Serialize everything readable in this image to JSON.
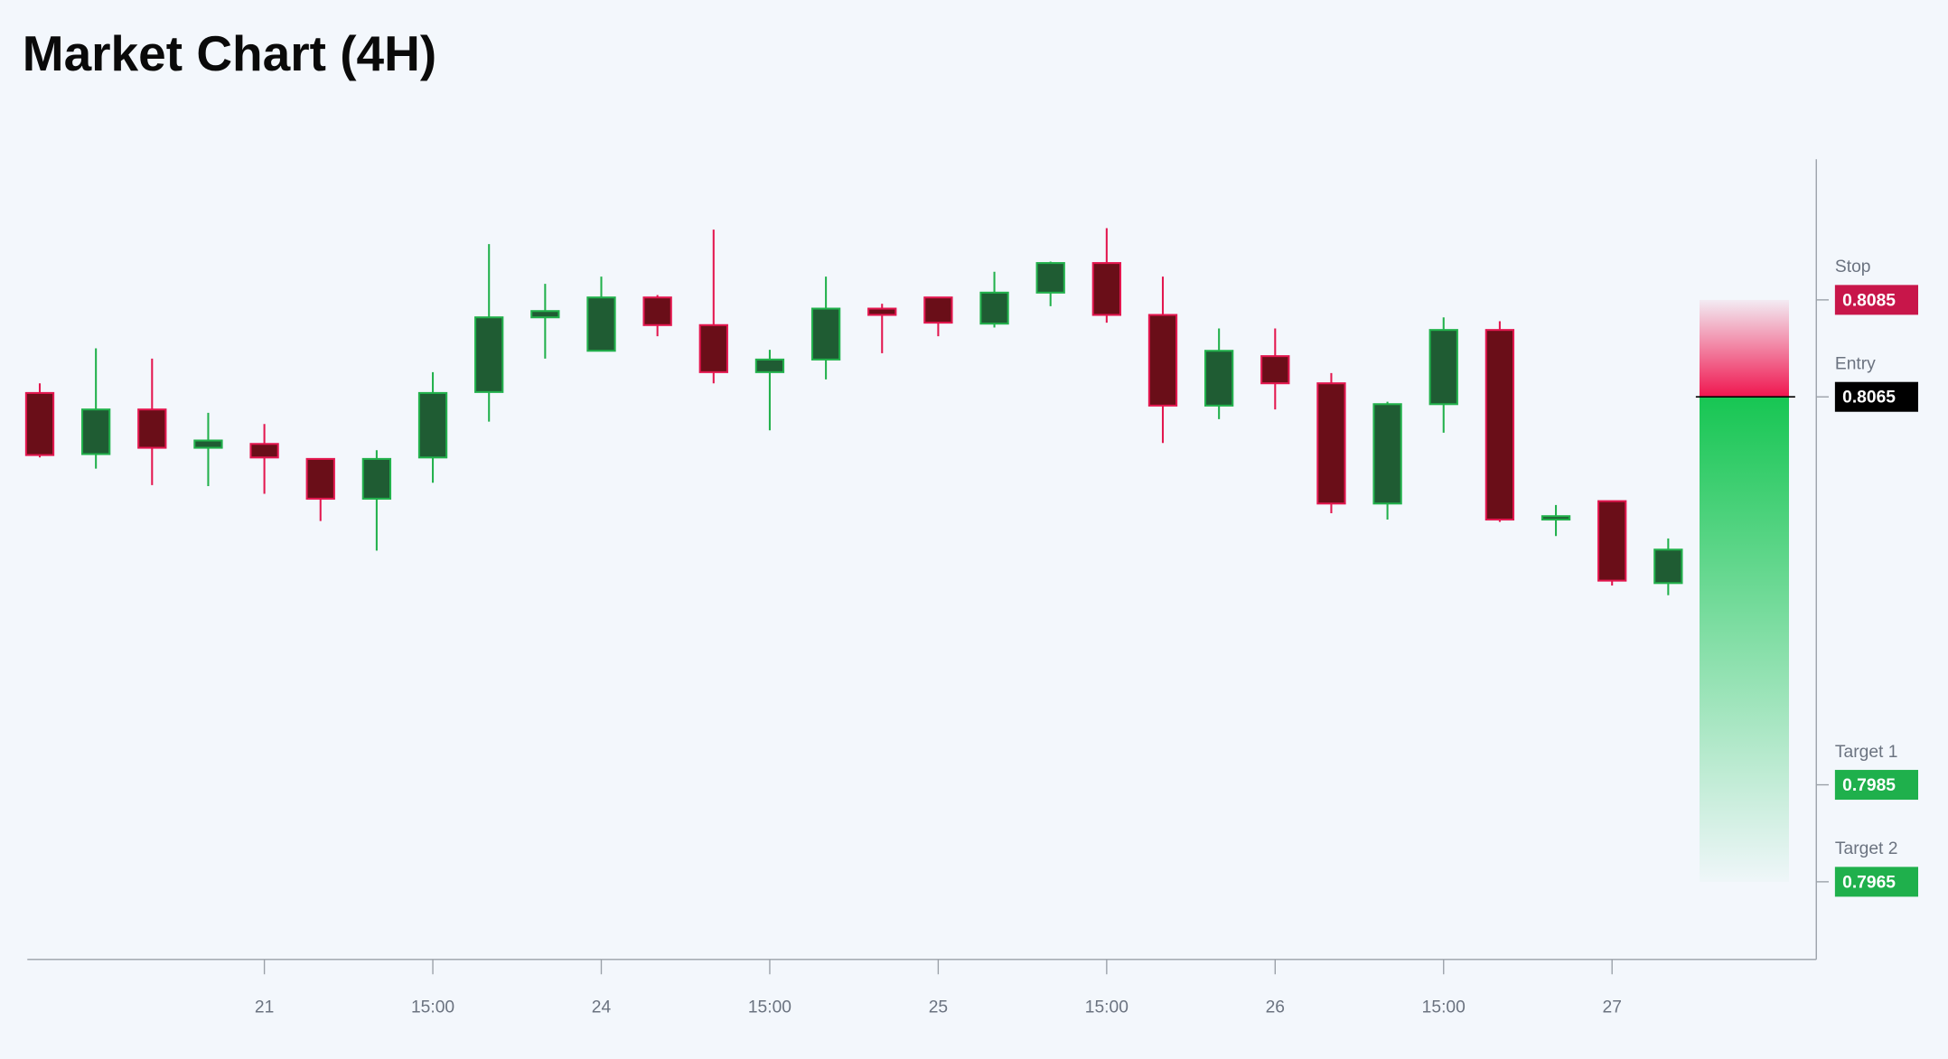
{
  "chart_data": {
    "type": "candlestick",
    "title": "Market Chart (4H)",
    "categories": [
      null,
      null,
      null,
      null,
      "21",
      null,
      null,
      "15:00",
      null,
      null,
      "24",
      null,
      null,
      "15:00",
      null,
      null,
      "25",
      null,
      null,
      "15:00",
      null,
      null,
      "26",
      null,
      null,
      "15:00",
      null,
      null,
      "27",
      null
    ],
    "open": [
      0.80658,
      0.80532,
      0.80624,
      0.80545,
      0.80553,
      0.80522,
      0.8044,
      0.80525,
      0.8066,
      0.80814,
      0.80745,
      0.80855,
      0.80798,
      0.80701,
      0.80727,
      0.80832,
      0.80855,
      0.80801,
      0.80865,
      0.80926,
      0.80819,
      0.80632,
      0.80734,
      0.80678,
      0.8043,
      0.80635,
      0.80788,
      0.80397,
      0.80435,
      0.80266
    ],
    "high": [
      0.80678,
      0.8075,
      0.80729,
      0.80617,
      0.80594,
      0.80522,
      0.8054,
      0.80701,
      0.80965,
      0.80883,
      0.80898,
      0.8086,
      0.80995,
      0.80747,
      0.80898,
      0.80842,
      0.80855,
      0.80908,
      0.80929,
      0.80998,
      0.80898,
      0.80791,
      0.80791,
      0.80699,
      0.8064,
      0.80814,
      0.80806,
      0.80427,
      0.80435,
      0.80358
    ],
    "low": [
      0.80525,
      0.80502,
      0.80468,
      0.80466,
      0.8045,
      0.80394,
      0.80333,
      0.80473,
      0.80599,
      0.80729,
      0.80745,
      0.80775,
      0.80678,
      0.80581,
      0.80686,
      0.8074,
      0.80775,
      0.80793,
      0.80837,
      0.80803,
      0.80555,
      0.80604,
      0.80624,
      0.8041,
      0.80397,
      0.80576,
      0.80392,
      0.80363,
      0.80261,
      0.80241
    ],
    "close": [
      0.8053,
      0.80624,
      0.80545,
      0.8056,
      0.80525,
      0.8044,
      0.80522,
      0.80658,
      0.80814,
      0.80827,
      0.80855,
      0.80798,
      0.80701,
      0.80727,
      0.80832,
      0.80819,
      0.80803,
      0.80865,
      0.80926,
      0.80819,
      0.80632,
      0.80745,
      0.80678,
      0.8043,
      0.80635,
      0.80788,
      0.80397,
      0.80404,
      0.80271,
      0.80335
    ],
    "up_color": "#22b14c",
    "up_fill": "#1f5c33",
    "down_color": "#e3174f",
    "down_fill": "#6a0e18",
    "ylim": [
      0.7949,
      0.8114
    ],
    "levels": [
      {
        "name": "Stop",
        "value": 0.8085,
        "color": "#c8164a"
      },
      {
        "name": "Entry",
        "value": 0.8065,
        "color": "#000000"
      },
      {
        "name": "Target 1",
        "value": 0.7985,
        "color": "#1fb04c"
      },
      {
        "name": "Target 2",
        "value": 0.7965,
        "color": "#1fb04c"
      }
    ]
  }
}
